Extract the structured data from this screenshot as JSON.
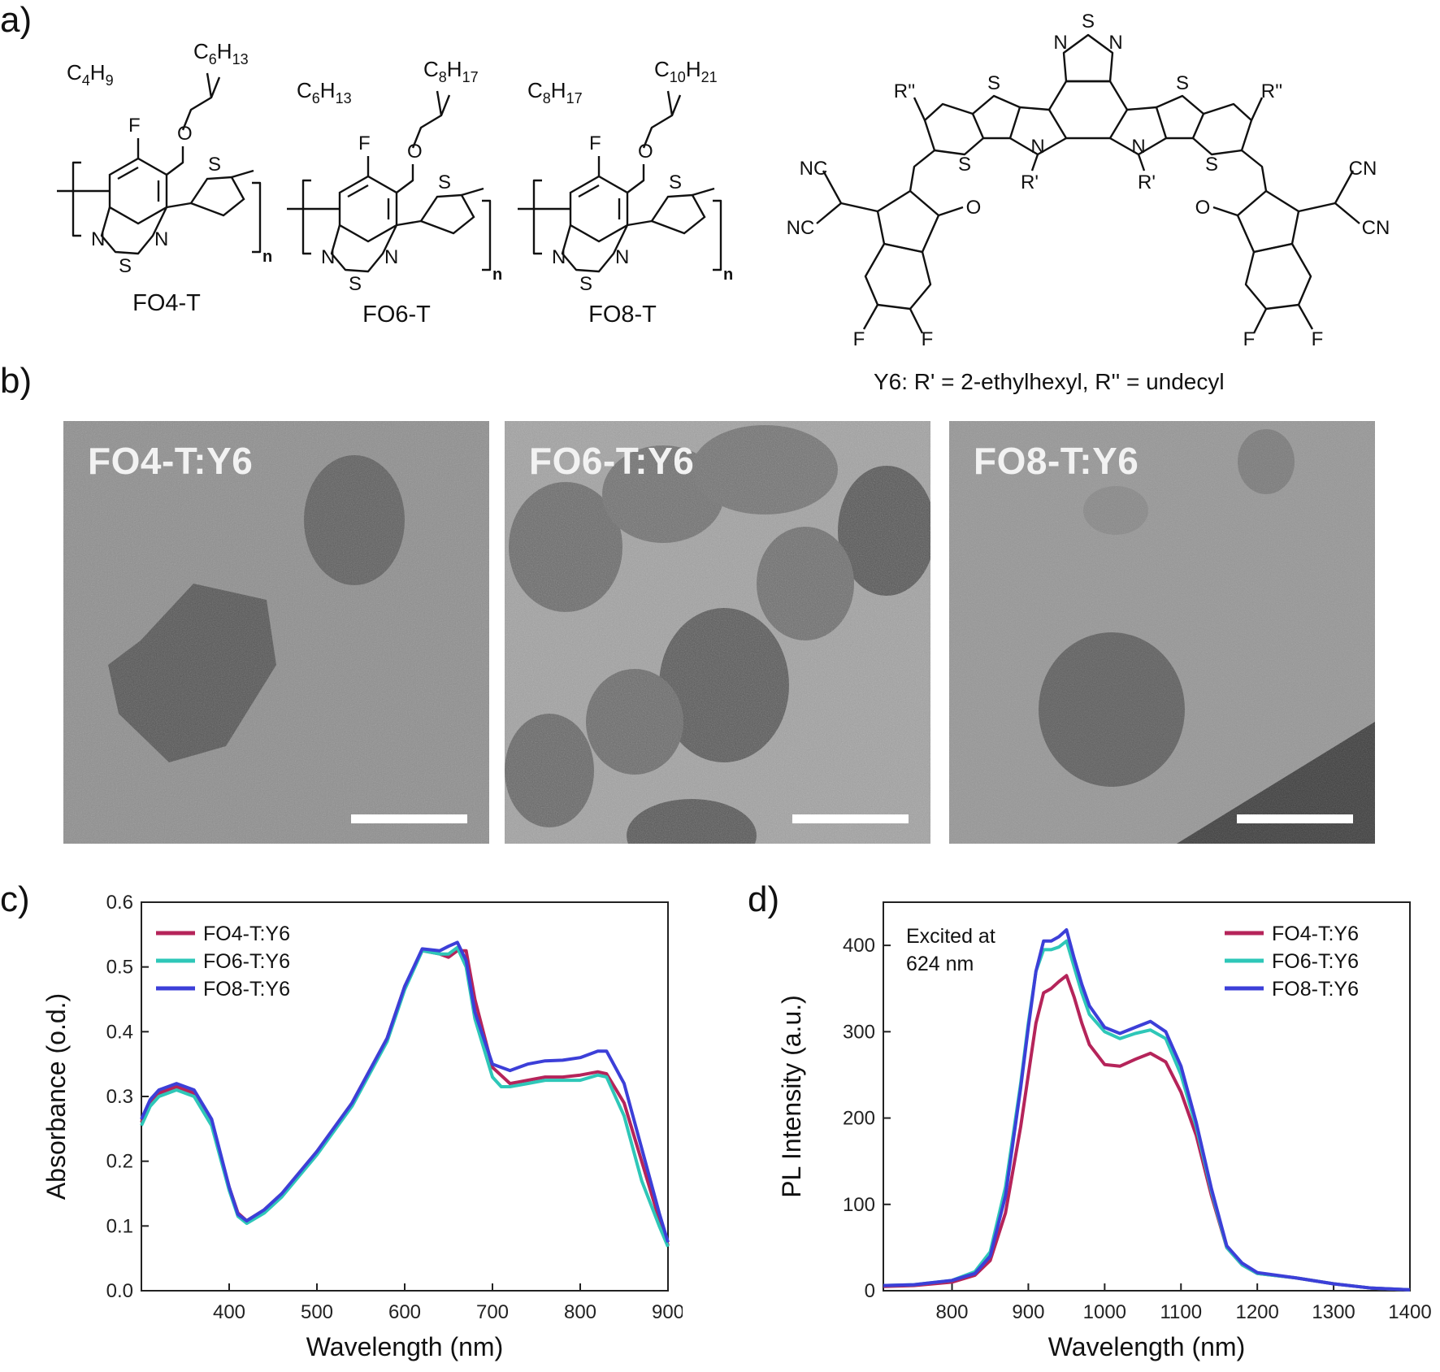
{
  "panels": {
    "a": "a)",
    "b": "b)",
    "c": "c)",
    "d": "d)"
  },
  "structures": {
    "labels": [
      "FO4-T",
      "FO6-T",
      "FO8-T"
    ],
    "side_chains": [
      {
        "left": "C4H9",
        "right": "C6H13"
      },
      {
        "left": "C6H13",
        "right": "C8H17"
      },
      {
        "left": "C8H17",
        "right": "C10H21"
      }
    ],
    "atoms": {
      "F": "F",
      "O": "O",
      "S": "S",
      "N": "N",
      "n": "n"
    },
    "y6": {
      "caption": "Y6: R' = 2-ethylhexyl, R'' = undecyl",
      "groups": {
        "NC": "NC",
        "CN": "CN",
        "Rpp": "R''",
        "Rp": "R'",
        "O": "O",
        "S": "S",
        "N": "N",
        "F": "F"
      }
    }
  },
  "tem": {
    "labels": [
      "FO4-T:Y6",
      "FO6-T:Y6",
      "FO8-T:Y6"
    ],
    "colors": {
      "background": "#8e8e8e",
      "particle": "#5a5a5a",
      "label": "#f2f2f2",
      "scale_bar": "#ffffff"
    }
  },
  "colors": {
    "FO4": "#b5245a",
    "FO6": "#2ec7b8",
    "FO8": "#3c3fd8"
  },
  "chart_data": [
    {
      "type": "line",
      "xlabel": "Wavelength (nm)",
      "ylabel": "Absorbance (o.d.)",
      "xlim": [
        300,
        900
      ],
      "ylim": [
        0.0,
        0.6
      ],
      "xticks": [
        400,
        500,
        600,
        700,
        800,
        900
      ],
      "yticks": [
        0.0,
        0.1,
        0.2,
        0.3,
        0.4,
        0.5,
        0.6
      ],
      "legend_position": "top-left",
      "series": [
        {
          "name": "FO4-T:Y6",
          "color": "#b5245a",
          "x": [
            300,
            310,
            320,
            340,
            360,
            380,
            400,
            410,
            420,
            440,
            460,
            500,
            540,
            580,
            600,
            620,
            640,
            650,
            660,
            670,
            680,
            700,
            720,
            740,
            760,
            780,
            800,
            820,
            830,
            850,
            870,
            890,
            900
          ],
          "y": [
            0.26,
            0.29,
            0.305,
            0.315,
            0.305,
            0.26,
            0.16,
            0.12,
            0.108,
            0.125,
            0.15,
            0.215,
            0.29,
            0.39,
            0.47,
            0.525,
            0.52,
            0.515,
            0.525,
            0.525,
            0.45,
            0.345,
            0.32,
            0.325,
            0.33,
            0.33,
            0.333,
            0.338,
            0.335,
            0.29,
            0.2,
            0.11,
            0.07
          ]
        },
        {
          "name": "FO6-T:Y6",
          "color": "#2ec7b8",
          "x": [
            300,
            310,
            320,
            340,
            360,
            380,
            400,
            410,
            420,
            440,
            460,
            500,
            540,
            580,
            600,
            620,
            640,
            650,
            660,
            670,
            680,
            700,
            710,
            720,
            740,
            760,
            780,
            800,
            820,
            830,
            850,
            870,
            890,
            900
          ],
          "y": [
            0.255,
            0.285,
            0.3,
            0.31,
            0.3,
            0.255,
            0.155,
            0.115,
            0.104,
            0.12,
            0.145,
            0.21,
            0.285,
            0.385,
            0.465,
            0.525,
            0.52,
            0.52,
            0.53,
            0.5,
            0.42,
            0.33,
            0.315,
            0.315,
            0.32,
            0.325,
            0.325,
            0.325,
            0.333,
            0.33,
            0.27,
            0.17,
            0.1,
            0.068
          ]
        },
        {
          "name": "FO8-T:Y6",
          "color": "#3c3fd8",
          "x": [
            300,
            310,
            320,
            340,
            360,
            380,
            400,
            410,
            420,
            440,
            460,
            500,
            540,
            580,
            600,
            620,
            640,
            650,
            660,
            670,
            680,
            700,
            720,
            740,
            760,
            780,
            800,
            820,
            830,
            850,
            870,
            890,
            900
          ],
          "y": [
            0.265,
            0.295,
            0.31,
            0.32,
            0.31,
            0.265,
            0.16,
            0.118,
            0.108,
            0.125,
            0.15,
            0.215,
            0.29,
            0.39,
            0.47,
            0.528,
            0.525,
            0.532,
            0.538,
            0.51,
            0.43,
            0.35,
            0.34,
            0.35,
            0.355,
            0.356,
            0.36,
            0.37,
            0.37,
            0.32,
            0.22,
            0.12,
            0.075
          ]
        }
      ]
    },
    {
      "type": "line",
      "xlabel": "Wavelength (nm)",
      "ylabel": "PL Intensity (a.u.)",
      "xlim": [
        710,
        1400
      ],
      "ylim": [
        0,
        450
      ],
      "xticks": [
        800,
        900,
        1000,
        1100,
        1200,
        1300,
        1400
      ],
      "yticks": [
        0,
        100,
        200,
        300,
        400
      ],
      "legend_position": "top-right",
      "annotation": [
        "Excited at",
        "624 nm"
      ],
      "series": [
        {
          "name": "FO4-T:Y6",
          "color": "#b5245a",
          "x": [
            710,
            750,
            800,
            830,
            850,
            870,
            890,
            900,
            910,
            920,
            930,
            940,
            950,
            960,
            970,
            980,
            1000,
            1020,
            1040,
            1060,
            1080,
            1100,
            1120,
            1140,
            1160,
            1180,
            1200,
            1250,
            1300,
            1350,
            1400
          ],
          "y": [
            5,
            6,
            10,
            18,
            35,
            90,
            190,
            250,
            310,
            345,
            350,
            358,
            365,
            340,
            310,
            285,
            262,
            260,
            268,
            275,
            265,
            230,
            180,
            110,
            50,
            30,
            20,
            15,
            8,
            3,
            1
          ]
        },
        {
          "name": "FO6-T:Y6",
          "color": "#2ec7b8",
          "x": [
            710,
            750,
            800,
            830,
            850,
            870,
            890,
            900,
            910,
            920,
            930,
            940,
            950,
            960,
            970,
            980,
            1000,
            1020,
            1040,
            1060,
            1080,
            1100,
            1120,
            1140,
            1160,
            1180,
            1200,
            1250,
            1300,
            1350,
            1400
          ],
          "y": [
            6,
            7,
            12,
            22,
            45,
            120,
            240,
            310,
            370,
            395,
            395,
            398,
            405,
            375,
            345,
            320,
            300,
            292,
            298,
            302,
            292,
            250,
            190,
            115,
            50,
            30,
            20,
            15,
            8,
            3,
            1
          ]
        },
        {
          "name": "FO8-T:Y6",
          "color": "#3c3fd8",
          "x": [
            710,
            750,
            800,
            830,
            850,
            870,
            890,
            900,
            910,
            920,
            930,
            940,
            950,
            960,
            970,
            980,
            1000,
            1020,
            1040,
            1060,
            1080,
            1100,
            1120,
            1140,
            1160,
            1180,
            1200,
            1250,
            1300,
            1350,
            1400
          ],
          "y": [
            6,
            7,
            12,
            20,
            40,
            110,
            235,
            305,
            370,
            405,
            405,
            410,
            418,
            385,
            355,
            330,
            305,
            298,
            305,
            312,
            300,
            260,
            195,
            118,
            52,
            32,
            21,
            15,
            8,
            3,
            1
          ]
        }
      ]
    }
  ]
}
